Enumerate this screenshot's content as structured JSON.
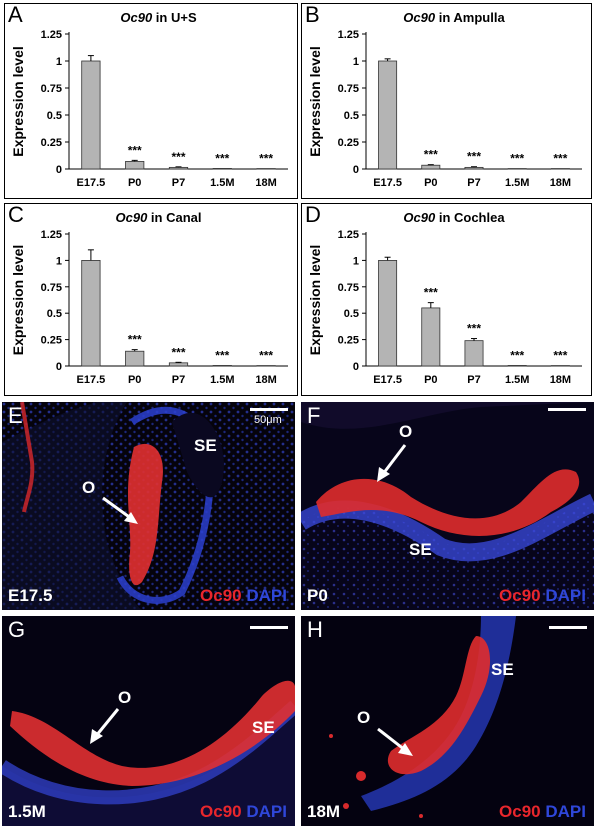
{
  "chart_data": [
    {
      "type": "bar",
      "panel_letter": "A",
      "gene": "Oc90",
      "title_suffix": " in U+S",
      "ylabel": "Expression level",
      "categories": [
        "E17.5",
        "P0",
        "P7",
        "1.5M",
        "18M"
      ],
      "values": [
        1.0,
        0.07,
        0.015,
        0.005,
        0.004
      ],
      "errors": [
        0.05,
        0.01,
        0.005,
        0.0,
        0.0
      ],
      "significance": [
        "",
        "***",
        "***",
        "***",
        "***"
      ],
      "ylim": [
        0,
        1.25
      ],
      "yticks": [
        "0",
        "0.25",
        "0.5",
        "0.75",
        "1",
        "1.25"
      ],
      "grid": false
    },
    {
      "type": "bar",
      "panel_letter": "B",
      "gene": "Oc90",
      "title_suffix": " in Ampulla",
      "ylabel": "Expression level",
      "categories": [
        "E17.5",
        "P0",
        "P7",
        "1.5M",
        "18M"
      ],
      "values": [
        1.0,
        0.035,
        0.015,
        0.004,
        0.004
      ],
      "errors": [
        0.02,
        0.005,
        0.006,
        0.0,
        0.0
      ],
      "significance": [
        "",
        "***",
        "***",
        "***",
        "***"
      ],
      "ylim": [
        0,
        1.25
      ],
      "yticks": [
        "0",
        "0.25",
        "0.5",
        "0.75",
        "1",
        "1.25"
      ],
      "grid": false
    },
    {
      "type": "bar",
      "panel_letter": "C",
      "gene": "Oc90",
      "title_suffix": " in Canal",
      "ylabel": "Expression level",
      "categories": [
        "E17.5",
        "P0",
        "P7",
        "1.5M",
        "18M"
      ],
      "values": [
        1.0,
        0.14,
        0.03,
        0.005,
        0.004
      ],
      "errors": [
        0.1,
        0.015,
        0.005,
        0.0,
        0.0
      ],
      "significance": [
        "",
        "***",
        "***",
        "***",
        "***"
      ],
      "ylim": [
        0,
        1.25
      ],
      "yticks": [
        "0",
        "0.25",
        "0.5",
        "0.75",
        "1",
        "1.25"
      ],
      "grid": false
    },
    {
      "type": "bar",
      "panel_letter": "D",
      "gene": "Oc90",
      "title_suffix": " in Cochlea",
      "ylabel": "Expression level",
      "categories": [
        "E17.5",
        "P0",
        "P7",
        "1.5M",
        "18M"
      ],
      "values": [
        1.0,
        0.55,
        0.24,
        0.005,
        0.004
      ],
      "errors": [
        0.03,
        0.05,
        0.02,
        0.0,
        0.0
      ],
      "significance": [
        "",
        "***",
        "***",
        "***",
        "***"
      ],
      "ylim": [
        0,
        1.25
      ],
      "yticks": [
        "0",
        "0.25",
        "0.5",
        "0.75",
        "1",
        "1.25"
      ],
      "grid": false
    }
  ],
  "image_panels": [
    {
      "letter": "E",
      "stage": "E17.5",
      "marker": "Oc90",
      "stain": "DAPI",
      "labels": [
        "SE",
        "O"
      ],
      "scale_label": "50μm"
    },
    {
      "letter": "F",
      "stage": "P0",
      "marker": "Oc90",
      "stain": "DAPI",
      "labels": [
        "O",
        "SE"
      ]
    },
    {
      "letter": "G",
      "stage": "1.5M",
      "marker": "Oc90",
      "stain": "DAPI",
      "labels": [
        "O",
        "SE"
      ]
    },
    {
      "letter": "H",
      "stage": "18M",
      "marker": "Oc90",
      "stain": "DAPI",
      "labels": [
        "SE",
        "O"
      ]
    }
  ],
  "colors": {
    "bar_fill": "#b4b4b4",
    "bar_stroke": "#333333",
    "marker_red": "#e8262c",
    "stain_blue": "#2f47d9",
    "image_bg": "#05030c"
  }
}
